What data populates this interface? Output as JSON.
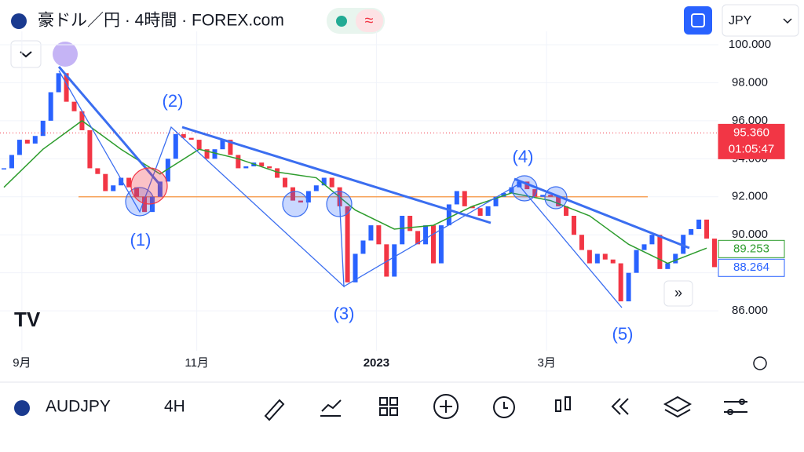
{
  "header": {
    "title": "豪ドル／円 · 4時間 · FOREX.com",
    "currency": "JPY",
    "mode": "≈"
  },
  "footer": {
    "symbol": "AUDJPY",
    "interval": "4H"
  },
  "annotations": [
    "(1)",
    "(2)",
    "(3)",
    "(4)",
    "(5)"
  ],
  "chart_data": {
    "type": "candlestick",
    "x": [
      0,
      1,
      2,
      3,
      4,
      5,
      6,
      7,
      8,
      9,
      10,
      11,
      12,
      13,
      14,
      15,
      16,
      17,
      18,
      19,
      20,
      21,
      22,
      23,
      24,
      25,
      26,
      27,
      28,
      29,
      30,
      31,
      32,
      33,
      34,
      35,
      36,
      37,
      38,
      39,
      40,
      41,
      42,
      43,
      44,
      45,
      46,
      47,
      48,
      49,
      50,
      51,
      52,
      53,
      54,
      55,
      56,
      57,
      58,
      59,
      60,
      61,
      62,
      63,
      64,
      65,
      66,
      67,
      68,
      69,
      70,
      71,
      72,
      73,
      74,
      75,
      76,
      77,
      78,
      79,
      80,
      81,
      82,
      83,
      84,
      85,
      86,
      87,
      88,
      89,
      90,
      91
    ],
    "series": [
      {
        "name": "AUDJPY",
        "up_color": "#2962ff",
        "down_color": "#f23645",
        "values": [
          93.5,
          94.2,
          95,
          94.8,
          95.2,
          96,
          97.5,
          98.5,
          97,
          96.5,
          95.5,
          93.5,
          93.2,
          92.3,
          92.6,
          93,
          92.5,
          92,
          91.2,
          92,
          92.8,
          94,
          95.3,
          95.1,
          95,
          94.5,
          94,
          94.5,
          95,
          94.2,
          93.5,
          93.6,
          93.8,
          93.6,
          93.5,
          93,
          92.5,
          91.8,
          91.7,
          92.3,
          92.6,
          93,
          92.5,
          91.5,
          87.5,
          89,
          89.7,
          90.5,
          89.5,
          87.8,
          89.5,
          91,
          90.2,
          89.5,
          90.5,
          88.5,
          90.5,
          91.6,
          92.3,
          91.5,
          91.4,
          91,
          91.5,
          92,
          92.2,
          92.5,
          92.8,
          92.4,
          92,
          92.1,
          92,
          91.5,
          91,
          90,
          89.2,
          88.5,
          89,
          88.7,
          88.5,
          86.5,
          88,
          89.2,
          89.5,
          90,
          88.2,
          88.5,
          89,
          90,
          90.3,
          90.8,
          89.8,
          88.3
        ]
      },
      {
        "color": "#2e9d2e",
        "x": [
          0,
          5,
          10,
          15,
          20,
          25,
          30,
          35,
          40,
          45,
          50,
          55,
          60,
          65,
          70,
          75,
          80,
          85,
          90
        ],
        "values": [
          92.5,
          94.5,
          96,
          94.5,
          93.2,
          94.5,
          94,
          93.3,
          93,
          91.3,
          90.3,
          90.5,
          91.5,
          92.2,
          91.8,
          91,
          89.5,
          88.5,
          89.3
        ]
      }
    ],
    "ylim": [
      83.9,
      100.7
    ],
    "xlim": [
      0,
      91
    ],
    "yticks": [
      {
        "value": 86,
        "label": "86.000"
      },
      {
        "value": 88,
        "label": "88.000"
      },
      {
        "value": 90,
        "label": "90.000"
      },
      {
        "value": 92,
        "label": "92.000"
      },
      {
        "value": 94,
        "label": "94.000"
      },
      {
        "value": 96,
        "label": "96.000"
      },
      {
        "value": 98,
        "label": "98.000"
      },
      {
        "value": 100,
        "label": "100.000"
      }
    ],
    "xticks": [
      {
        "value": 2.3,
        "label": "9月"
      },
      {
        "value": 24.7,
        "label": "11月"
      },
      {
        "value": 47.7,
        "label": "2023"
      },
      {
        "value": 69.5,
        "label": "3月"
      }
    ],
    "level": 92,
    "price_tags": [
      {
        "value": 95.36,
        "label": "95.360",
        "color": "#f23645",
        "sub": "01:05:47"
      },
      {
        "value": 89.253,
        "label": "89.253",
        "color": "#2e9d2e"
      },
      {
        "value": 88.264,
        "label": "88.264",
        "color": "#2962ff"
      }
    ]
  }
}
